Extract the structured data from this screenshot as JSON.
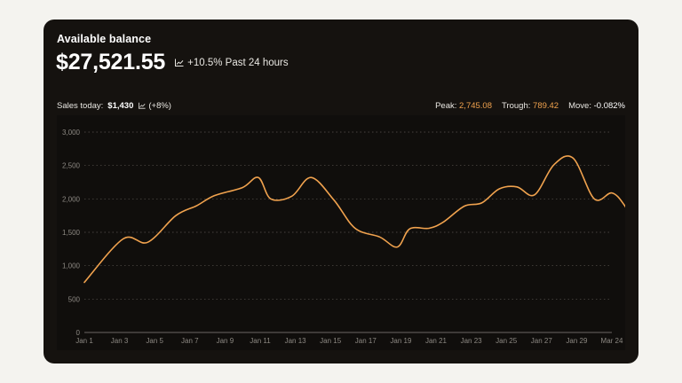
{
  "card": {
    "title": "Available balance",
    "balance": "$27,521.55",
    "change": "+10.5% Past 24 hours"
  },
  "stats": {
    "sales_label": "Sales today:",
    "sales_value": "$1,430",
    "sales_change": "(+8%)",
    "peak_label": "Peak:",
    "peak_value": "2,745.08",
    "trough_label": "Trough:",
    "trough_value": "789.42",
    "move_label": "Move:",
    "move_value": "-0.082%"
  },
  "colors": {
    "line": "#f0a24e",
    "accent_orange": "#f0a24e",
    "card_bg": "#15120f",
    "grid": "#5a5650"
  },
  "chart_data": {
    "type": "line",
    "ylim": [
      0,
      3000
    ],
    "yticks": [
      "0",
      "500",
      "1,000",
      "1,500",
      "2,000",
      "2,500",
      "3,000"
    ],
    "xticks": [
      "Jan 1",
      "Jan 3",
      "Jan 5",
      "Jan 7",
      "Jan 9",
      "Jan 11",
      "Jan 13",
      "Jan 15",
      "Jan 17",
      "Jan 19",
      "Jan 21",
      "Jan 23",
      "Jan 25",
      "Jan 27",
      "Jan 29",
      "Mar 24"
    ],
    "grid": true,
    "series": [
      {
        "values": [
          [
            0,
            750
          ],
          [
            1.1,
            1400
          ],
          [
            1.8,
            1350
          ],
          [
            2.6,
            1750
          ],
          [
            3.2,
            1900
          ],
          [
            3.7,
            2050
          ],
          [
            4.5,
            2170
          ],
          [
            4.95,
            2320
          ],
          [
            5.3,
            2000
          ],
          [
            5.9,
            2040
          ],
          [
            6.45,
            2320
          ],
          [
            7.1,
            1980
          ],
          [
            7.7,
            1560
          ],
          [
            8.4,
            1430
          ],
          [
            8.9,
            1280
          ],
          [
            9.25,
            1550
          ],
          [
            9.8,
            1560
          ],
          [
            10.2,
            1650
          ],
          [
            10.8,
            1890
          ],
          [
            11.3,
            1940
          ],
          [
            11.8,
            2150
          ],
          [
            12.3,
            2180
          ],
          [
            12.8,
            2060
          ],
          [
            13.35,
            2510
          ],
          [
            13.9,
            2610
          ],
          [
            14.5,
            2000
          ],
          [
            15.0,
            2090
          ],
          [
            15.35,
            1910
          ],
          [
            15.6,
            1650
          ]
        ]
      }
    ]
  }
}
